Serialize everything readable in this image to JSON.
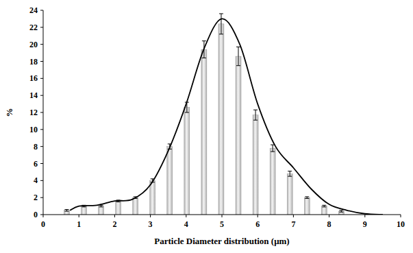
{
  "chart_data": {
    "type": "bar",
    "x_label": "Particle Diameter distribution (μm)",
    "y_label": "%",
    "xlim": [
      0,
      10
    ],
    "xticks": [
      0,
      1,
      2,
      3,
      4,
      5,
      6,
      7,
      8,
      9,
      10
    ],
    "ylim": [
      0,
      24
    ],
    "yticks": [
      0,
      2,
      4,
      6,
      8,
      10,
      12,
      14,
      16,
      18,
      20,
      22,
      24
    ],
    "grid": false,
    "series": [
      {
        "type": "bar",
        "color": "#b0b0b0",
        "x": [
          0.66,
          1.14,
          1.62,
          2.1,
          2.58,
          3.06,
          3.54,
          4.02,
          4.5,
          4.98,
          5.46,
          5.94,
          6.42,
          6.9,
          7.38,
          7.86,
          8.34
        ],
        "values": [
          0.5,
          1.0,
          1.0,
          1.6,
          2.0,
          4.0,
          8.0,
          12.6,
          19.4,
          22.4,
          18.6,
          11.7,
          7.8,
          4.8,
          2.0,
          1.0,
          0.4
        ],
        "errors": [
          0.1,
          0.1,
          0.1,
          0.1,
          0.1,
          0.2,
          0.3,
          0.6,
          1.0,
          1.2,
          1.1,
          0.6,
          0.4,
          0.3,
          0.1,
          0.1,
          0.1
        ]
      },
      {
        "type": "line",
        "color": "#000000",
        "x": [
          0.75,
          1.0,
          1.5,
          2.0,
          2.5,
          3.0,
          3.5,
          4.0,
          4.5,
          5.0,
          5.5,
          6.0,
          6.5,
          7.0,
          7.5,
          8.0,
          8.5,
          9.0,
          9.5
        ],
        "values": [
          0.5,
          1.0,
          1.1,
          1.6,
          1.8,
          3.5,
          7.5,
          13.0,
          19.5,
          23.0,
          20.0,
          13.0,
          8.0,
          5.5,
          3.0,
          1.2,
          0.5,
          0.1,
          0.0
        ]
      }
    ]
  }
}
